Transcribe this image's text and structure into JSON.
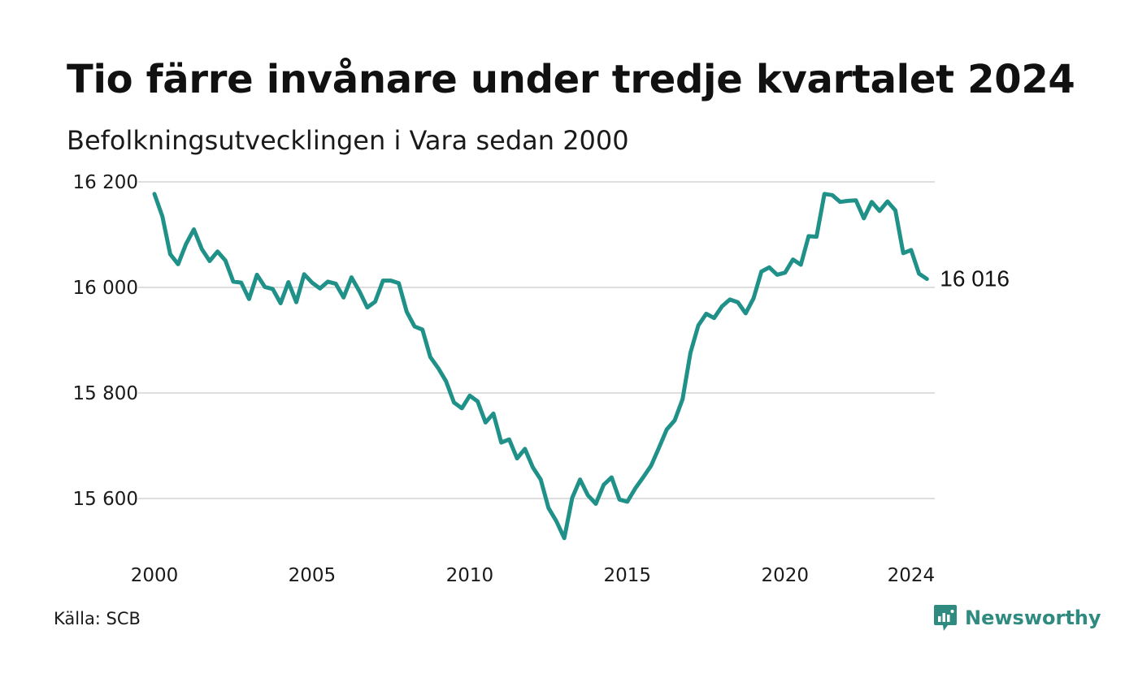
{
  "title": "Tio färre invånare under tredje kvartalet 2024",
  "subtitle": "Befolkningsutvecklingen i Vara sedan 2000",
  "source": "Källa: SCB",
  "brand": {
    "name": "Newsworthy",
    "icon": "newsworthy-logo-icon",
    "color": "#2f8a80"
  },
  "chart_data": {
    "type": "line",
    "ylim": [
      15520,
      16200
    ],
    "xlim": [
      2000,
      2024.75
    ],
    "yticks": [
      16200,
      16000,
      15800,
      15600
    ],
    "ytick_labels": [
      "16 200",
      "16 000",
      "15 800",
      "15 600"
    ],
    "xticks": [
      2000,
      2005,
      2010,
      2015,
      2020,
      2024
    ],
    "xtick_labels": [
      "2000",
      "2005",
      "2010",
      "2015",
      "2020",
      "2024"
    ],
    "grid": true,
    "line_color": "#1f9188",
    "end_label": "16 016",
    "series": [
      {
        "x_start": 2000.0,
        "x_step": 0.25,
        "values": [
          16177,
          16135,
          16063,
          16044,
          16082,
          16110,
          16073,
          16050,
          16068,
          16051,
          16011,
          16009,
          15978,
          16024,
          16001,
          15997,
          15970,
          16010,
          15972,
          16025,
          16009,
          15998,
          16011,
          16007,
          15981,
          16019,
          15993,
          15962,
          15973,
          16013,
          16013,
          16008,
          15954,
          15926,
          15920,
          15868,
          15847,
          15822,
          15782,
          15771,
          15795,
          15784,
          15744,
          15761,
          15706,
          15712,
          15676,
          15694,
          15659,
          15636,
          15582,
          15557,
          15525,
          15601,
          15636,
          15606,
          15590,
          15626,
          15640,
          15598,
          15594,
          15619,
          15640,
          15662,
          15696,
          15731,
          15748,
          15788,
          15876,
          15928,
          15950,
          15942,
          15964,
          15977,
          15972,
          15951,
          15979,
          16030,
          16038,
          16024,
          16028,
          16053,
          16043,
          16097,
          16096,
          16177,
          16175,
          16162,
          16164,
          16165,
          16131,
          16162,
          16145,
          16163,
          16146,
          16065,
          16071,
          16026,
          16016
        ]
      }
    ]
  }
}
